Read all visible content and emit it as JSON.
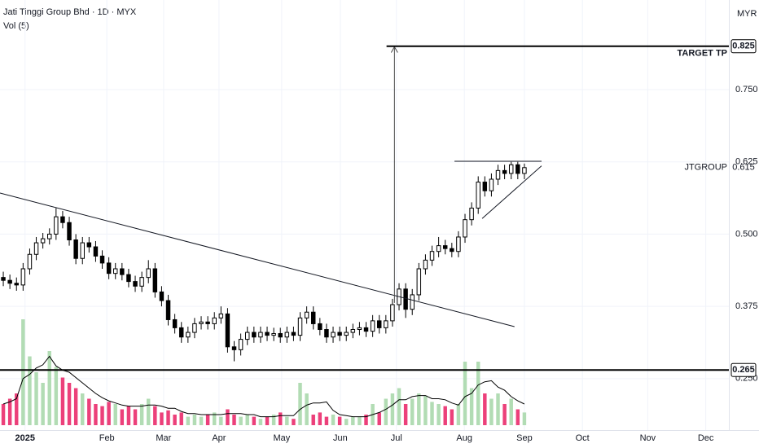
{
  "chart_data": {
    "type": "candlestick",
    "title": "Jati Tinggi Group Bhd · 1D · MYX",
    "volume_label": "Vol (5)",
    "currency": "MYR",
    "xlim": [
      -0.5,
      110
    ],
    "xticks": [
      {
        "value": 3.3,
        "label": "2025"
      },
      {
        "value": 15.7,
        "label": "Feb"
      },
      {
        "value": 24.3,
        "label": "Mar"
      },
      {
        "value": 32.7,
        "label": "Apr"
      },
      {
        "value": 42.2,
        "label": "May"
      },
      {
        "value": 51.1,
        "label": "Jun"
      },
      {
        "value": 59.6,
        "label": "Jul"
      },
      {
        "value": 69.9,
        "label": "Aug"
      },
      {
        "value": 79,
        "label": "Sep"
      },
      {
        "value": 87.8,
        "label": "Oct"
      },
      {
        "value": 97.7,
        "label": "Nov"
      },
      {
        "value": 106.5,
        "label": "Dec"
      }
    ],
    "ylim": [
      0.161,
      0.905
    ],
    "yticks": [
      {
        "value": 0.25,
        "label": "0.250"
      },
      0.375,
      {
        "value": 0.5,
        "label": "0.500"
      },
      {
        "value": 0.625,
        "label": "0.625"
      },
      {
        "value": 0.75,
        "label": "0.750"
      }
    ],
    "grid": true,
    "up_color": "#ffffff",
    "down_color": "#000000",
    "outline_color": "#000000",
    "open": [
      0.425,
      0.42,
      0.415,
      0.412,
      0.44,
      0.465,
      0.485,
      0.492,
      0.5,
      0.53,
      0.52,
      0.49,
      0.458,
      0.485,
      0.478,
      0.462,
      0.45,
      0.432,
      0.44,
      0.43,
      0.418,
      0.41,
      0.425,
      0.44,
      0.4,
      0.385,
      0.352,
      0.338,
      0.322,
      0.33,
      0.345,
      0.348,
      0.345,
      0.355,
      0.362,
      0.305,
      0.3,
      0.318,
      0.33,
      0.322,
      0.33,
      0.325,
      0.328,
      0.322,
      0.33,
      0.325,
      0.355,
      0.365,
      0.345,
      0.335,
      0.322,
      0.33,
      0.325,
      0.33,
      0.335,
      0.338,
      0.332,
      0.35,
      0.338,
      0.35,
      0.378,
      0.405,
      0.37,
      0.395,
      0.44,
      0.455,
      0.47,
      0.48,
      0.475,
      0.47,
      0.495,
      0.525,
      0.545,
      0.59,
      0.575,
      0.595,
      0.61,
      0.605,
      0.62,
      0.605
    ],
    "high": [
      0.435,
      0.43,
      0.425,
      0.45,
      0.475,
      0.495,
      0.502,
      0.51,
      0.545,
      0.54,
      0.53,
      0.5,
      0.495,
      0.495,
      0.488,
      0.472,
      0.46,
      0.45,
      0.45,
      0.44,
      0.428,
      0.435,
      0.455,
      0.45,
      0.41,
      0.395,
      0.362,
      0.348,
      0.34,
      0.355,
      0.358,
      0.358,
      0.365,
      0.375,
      0.372,
      0.315,
      0.328,
      0.34,
      0.34,
      0.34,
      0.34,
      0.338,
      0.338,
      0.34,
      0.34,
      0.365,
      0.375,
      0.375,
      0.355,
      0.345,
      0.34,
      0.34,
      0.34,
      0.345,
      0.348,
      0.348,
      0.36,
      0.36,
      0.36,
      0.388,
      0.415,
      0.415,
      0.405,
      0.45,
      0.465,
      0.48,
      0.495,
      0.49,
      0.485,
      0.505,
      0.535,
      0.555,
      0.6,
      0.6,
      0.605,
      0.62,
      0.62,
      0.625,
      0.625,
      0.622
    ],
    "low": [
      0.41,
      0.405,
      0.402,
      0.402,
      0.43,
      0.455,
      0.475,
      0.482,
      0.49,
      0.51,
      0.48,
      0.448,
      0.448,
      0.468,
      0.452,
      0.44,
      0.422,
      0.422,
      0.42,
      0.408,
      0.4,
      0.4,
      0.415,
      0.39,
      0.375,
      0.342,
      0.328,
      0.312,
      0.312,
      0.32,
      0.335,
      0.335,
      0.335,
      0.345,
      0.295,
      0.28,
      0.29,
      0.308,
      0.312,
      0.312,
      0.315,
      0.315,
      0.312,
      0.312,
      0.315,
      0.315,
      0.345,
      0.335,
      0.325,
      0.312,
      0.312,
      0.315,
      0.315,
      0.32,
      0.325,
      0.322,
      0.322,
      0.328,
      0.328,
      0.34,
      0.368,
      0.355,
      0.36,
      0.385,
      0.43,
      0.445,
      0.46,
      0.465,
      0.46,
      0.46,
      0.485,
      0.515,
      0.535,
      0.565,
      0.565,
      0.585,
      0.595,
      0.595,
      0.595,
      0.595
    ],
    "close": [
      0.42,
      0.415,
      0.412,
      0.44,
      0.465,
      0.485,
      0.492,
      0.5,
      0.53,
      0.52,
      0.49,
      0.458,
      0.485,
      0.478,
      0.462,
      0.45,
      0.432,
      0.44,
      0.43,
      0.418,
      0.41,
      0.425,
      0.44,
      0.4,
      0.385,
      0.352,
      0.338,
      0.322,
      0.33,
      0.345,
      0.348,
      0.345,
      0.355,
      0.362,
      0.305,
      0.3,
      0.318,
      0.33,
      0.322,
      0.33,
      0.325,
      0.328,
      0.322,
      0.33,
      0.325,
      0.355,
      0.365,
      0.345,
      0.335,
      0.322,
      0.33,
      0.325,
      0.33,
      0.335,
      0.338,
      0.332,
      0.35,
      0.338,
      0.35,
      0.378,
      0.405,
      0.37,
      0.395,
      0.44,
      0.455,
      0.47,
      0.48,
      0.475,
      0.47,
      0.495,
      0.525,
      0.545,
      0.59,
      0.575,
      0.595,
      0.61,
      0.605,
      0.62,
      0.605,
      0.615
    ],
    "vlim": [
      0,
      100
    ],
    "volume_up_color": "#a5d6a7",
    "volume_down_color": "#e91e63",
    "volume_ma_color": "#000000",
    "volume": [
      20,
      25,
      30,
      100,
      65,
      50,
      40,
      70,
      55,
      45,
      40,
      35,
      30,
      25,
      20,
      18,
      22,
      20,
      15,
      18,
      15,
      20,
      25,
      18,
      12,
      14,
      10,
      12,
      8,
      10,
      8,
      10,
      12,
      8,
      15,
      10,
      8,
      10,
      8,
      6,
      8,
      10,
      12,
      8,
      6,
      40,
      30,
      10,
      12,
      8,
      10,
      8,
      6,
      8,
      8,
      10,
      20,
      12,
      25,
      30,
      35,
      20,
      25,
      30,
      28,
      22,
      20,
      18,
      15,
      20,
      60,
      35,
      60,
      30,
      25,
      30,
      20,
      25,
      15,
      12
    ],
    "volume_ma": [
      20,
      22,
      25,
      44,
      48,
      54,
      57,
      65,
      56,
      52,
      50,
      45,
      40,
      35,
      30,
      26,
      23,
      21,
      19,
      18,
      18,
      18,
      19,
      19,
      18,
      16,
      16,
      13,
      11,
      11,
      10,
      10,
      10,
      10,
      11,
      11,
      11,
      10,
      10,
      8,
      8,
      8,
      9,
      9,
      9,
      15,
      19,
      21,
      21,
      22,
      14,
      10,
      9,
      8,
      8,
      8,
      10,
      12,
      15,
      19,
      24,
      24,
      27,
      28,
      28,
      25,
      25,
      24,
      21,
      19,
      27,
      30,
      38,
      41,
      42,
      36,
      33,
      27,
      23,
      20
    ],
    "levels": [
      {
        "label": "TARGET TP",
        "value": 0.825,
        "start": 58.1
      },
      {
        "value": 0.265
      }
    ],
    "last_price": {
      "label": "JTGROUP",
      "value": 0.615
    },
    "lines": [
      {
        "x": [
          -0.5,
          77.5
        ],
        "y": [
          0.571,
          0.34
        ]
      },
      {
        "x": [
          68.4,
          81.6
        ],
        "y": [
          0.626,
          0.626
        ]
      },
      {
        "x": [
          72.6,
          81.6
        ],
        "y": [
          0.527,
          0.618
        ]
      }
    ],
    "arrow": {
      "x": 59.3,
      "y": [
        0.381,
        0.824
      ]
    }
  }
}
